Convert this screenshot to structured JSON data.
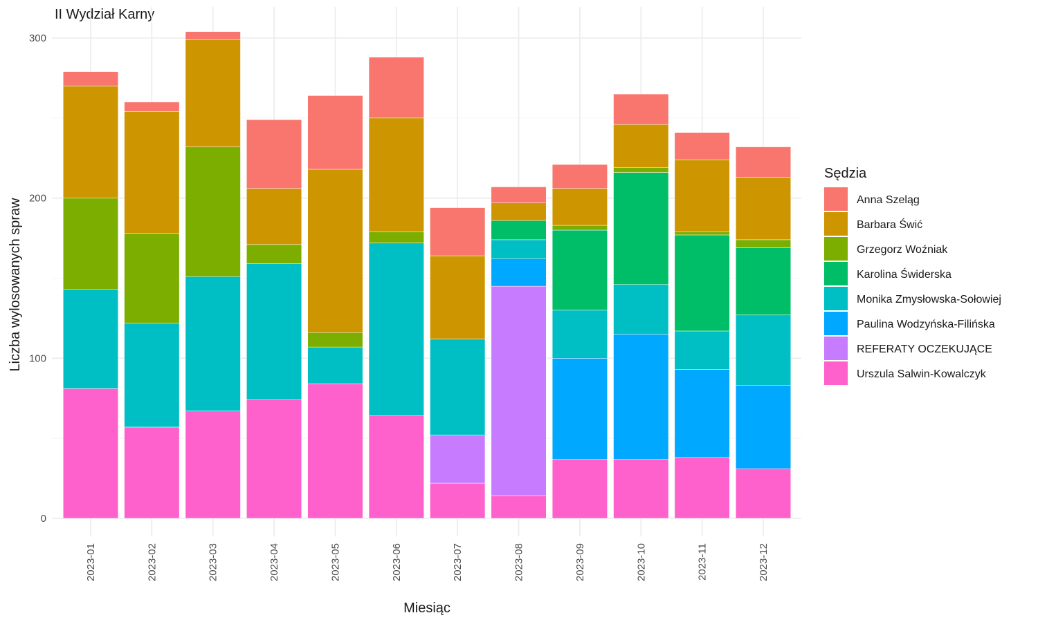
{
  "chart_data": {
    "type": "bar",
    "stacked": true,
    "title": "II Wydział Karny",
    "xlabel": "Miesiąc",
    "ylabel": "Liczba wylosowanych spraw",
    "ylim": [
      0,
      300
    ],
    "yticks": [
      0,
      100,
      200,
      300
    ],
    "legend_title": "Sędzia",
    "legend_position": "right",
    "grid": true,
    "categories": [
      "2023-01",
      "2023-02",
      "2023-03",
      "2023-04",
      "2023-05",
      "2023-06",
      "2023-07",
      "2023-08",
      "2023-09",
      "2023-10",
      "2023-11",
      "2023-12"
    ],
    "series": [
      {
        "name": "Anna Szeląg",
        "color": "#F8766D",
        "values": [
          9,
          6,
          5,
          43,
          46,
          38,
          30,
          10,
          15,
          19,
          17,
          19
        ]
      },
      {
        "name": "Barbara Świć",
        "color": "#CD9600",
        "values": [
          70,
          76,
          67,
          35,
          102,
          71,
          52,
          11,
          23,
          27,
          45,
          39
        ]
      },
      {
        "name": "Grzegorz Woźniak",
        "color": "#7CAE00",
        "values": [
          57,
          56,
          81,
          12,
          9,
          7,
          0,
          0,
          3,
          3,
          2,
          5
        ]
      },
      {
        "name": "Karolina Świderska",
        "color": "#00BE67",
        "values": [
          0,
          0,
          0,
          0,
          0,
          0,
          0,
          12,
          50,
          70,
          60,
          42
        ]
      },
      {
        "name": "Monika Zmysłowska-Sołowiej",
        "color": "#00BFC4",
        "values": [
          62,
          65,
          84,
          85,
          23,
          108,
          60,
          12,
          30,
          31,
          24,
          44
        ]
      },
      {
        "name": "Paulina Wodzyńska-Filińska",
        "color": "#00A9FF",
        "values": [
          0,
          0,
          0,
          0,
          0,
          0,
          0,
          17,
          63,
          78,
          55,
          52
        ]
      },
      {
        "name": "REFERATY OCZEKUJĄCE",
        "color": "#C77CFF",
        "values": [
          0,
          0,
          0,
          0,
          0,
          0,
          30,
          131,
          0,
          0,
          0,
          0
        ]
      },
      {
        "name": "Urszula Salwin-Kowalczyk",
        "color": "#FF61CC",
        "values": [
          81,
          57,
          67,
          74,
          84,
          64,
          22,
          14,
          37,
          37,
          38,
          31
        ]
      }
    ]
  }
}
